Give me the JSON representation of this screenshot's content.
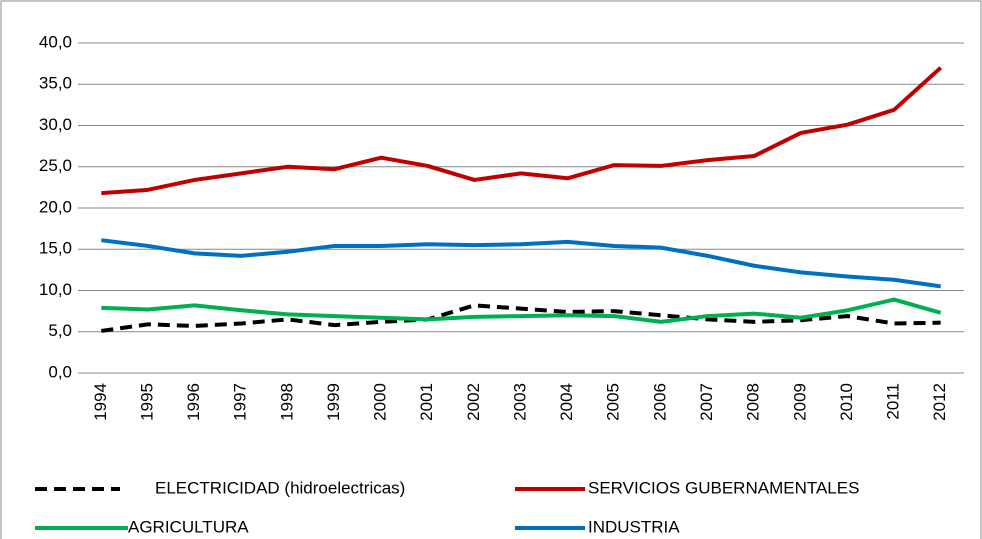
{
  "chart_data": {
    "type": "line",
    "categories": [
      "1994",
      "1995",
      "1996",
      "1997",
      "1998",
      "1999",
      "2000",
      "2001",
      "2002",
      "2003",
      "2004",
      "2005",
      "2006",
      "2007",
      "2008",
      "2009",
      "2010",
      "2011",
      "2012"
    ],
    "series": [
      {
        "name": "ELECTRICIDAD (hidroelectricas)",
        "color": "#000000",
        "dashed": true,
        "values": [
          5.1,
          5.9,
          5.7,
          6.0,
          6.5,
          5.8,
          6.2,
          6.5,
          8.2,
          7.8,
          7.4,
          7.5,
          7.0,
          6.5,
          6.2,
          6.4,
          6.9,
          6.0,
          6.1
        ]
      },
      {
        "name": "SERVICIOS GUBERNAMENTALES",
        "color": "#c00000",
        "values": [
          21.8,
          22.2,
          23.4,
          24.2,
          25.0,
          24.7,
          26.1,
          25.1,
          23.4,
          24.2,
          23.6,
          25.2,
          25.1,
          25.8,
          26.3,
          29.1,
          30.1,
          31.9,
          37.0
        ]
      },
      {
        "name": "AGRICULTURA",
        "color": "#00b050",
        "values": [
          7.9,
          7.7,
          8.2,
          7.6,
          7.1,
          6.9,
          6.7,
          6.5,
          6.8,
          6.9,
          7.0,
          6.9,
          6.2,
          6.9,
          7.2,
          6.7,
          7.6,
          8.9,
          7.3
        ]
      },
      {
        "name": "INDUSTRIA",
        "color": "#0070c0",
        "values": [
          16.1,
          15.4,
          14.5,
          14.2,
          14.7,
          15.4,
          15.4,
          15.6,
          15.5,
          15.6,
          15.9,
          15.4,
          15.2,
          14.2,
          13.0,
          12.2,
          11.7,
          11.3,
          10.5
        ]
      }
    ],
    "ylim": [
      0,
      40
    ],
    "yticks": [
      {
        "value": 0,
        "label": "0,0"
      },
      {
        "value": 5,
        "label": "5,0"
      },
      {
        "value": 10,
        "label": "10,0"
      },
      {
        "value": 15,
        "label": "15,0"
      },
      {
        "value": 20,
        "label": "20,0"
      },
      {
        "value": 25,
        "label": "25,0"
      },
      {
        "value": 30,
        "label": "30,0"
      },
      {
        "value": 35,
        "label": "35,0"
      },
      {
        "value": 40,
        "label": "40,0"
      }
    ],
    "grid": true
  }
}
